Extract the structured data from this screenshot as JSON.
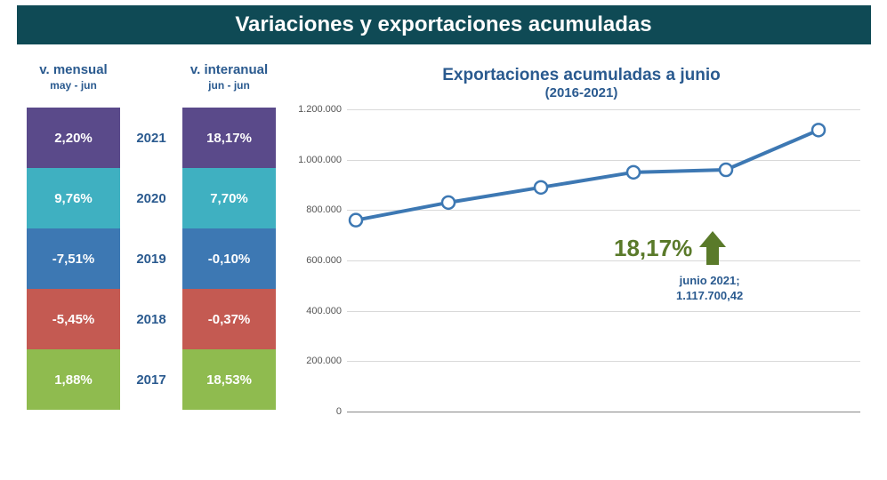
{
  "title": "Variaciones y exportaciones acumuladas",
  "columns": {
    "monthly": {
      "header": "v. mensual",
      "subheader": "may - jun"
    },
    "yearly": {
      "header": "v. interanual",
      "subheader": "jun - jun"
    }
  },
  "rows": [
    {
      "year": "2021",
      "monthly": "2,20%",
      "yearly": "18,17%",
      "color": "#5a4a8a"
    },
    {
      "year": "2020",
      "monthly": "9,76%",
      "yearly": "7,70%",
      "color": "#3fb0c1"
    },
    {
      "year": "2019",
      "monthly": "-7,51%",
      "yearly": "-0,10%",
      "color": "#3d78b3"
    },
    {
      "year": "2018",
      "monthly": "-5,45%",
      "yearly": "-0,37%",
      "color": "#c45a52"
    },
    {
      "year": "2017",
      "monthly": "1,88%",
      "yearly": "18,53%",
      "color": "#8fbb4f"
    }
  ],
  "chart": {
    "title": "Exportaciones acumuladas a junio",
    "subtitle": "(2016-2021)",
    "type": "line",
    "ylim": [
      0,
      1200000
    ],
    "ytick_step": 200000,
    "ytick_labels": [
      "0",
      "200.000",
      "400.000",
      "600.000",
      "800.000",
      "1.000.000",
      "1.200.000"
    ],
    "points": [
      {
        "x": 0,
        "y": 760000
      },
      {
        "x": 1,
        "y": 830000
      },
      {
        "x": 2,
        "y": 890000
      },
      {
        "x": 3,
        "y": 950000
      },
      {
        "x": 4,
        "y": 960000
      },
      {
        "x": 5,
        "y": 1117700
      }
    ],
    "line_color": "#3d78b3",
    "line_width": 4,
    "marker_fill": "#ffffff",
    "marker_stroke": "#3d78b3",
    "marker_radius": 7,
    "grid_color": "#d9d9d9",
    "background_color": "#ffffff",
    "callout": {
      "text": "18,17%",
      "arrow_color": "#5a7a2a"
    },
    "data_label": {
      "line1": "junio 2021;",
      "line2": "1.117.700,42"
    }
  }
}
